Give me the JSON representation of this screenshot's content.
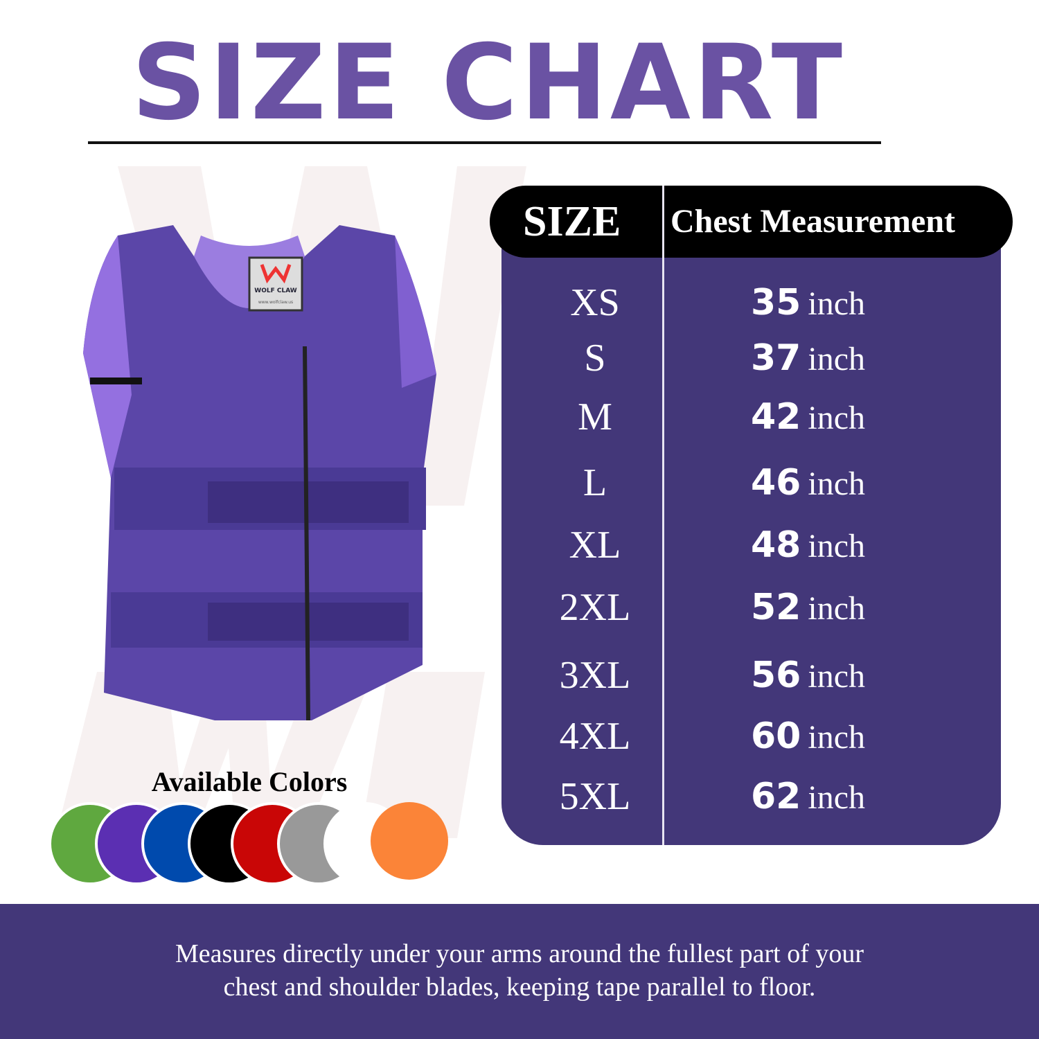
{
  "title": "SIZE CHART",
  "table": {
    "headers": [
      "SIZE",
      "Chest Measurement"
    ],
    "unit": "inch",
    "rows": [
      {
        "size": "XS",
        "chest": "35"
      },
      {
        "size": "S",
        "chest": "37"
      },
      {
        "size": "M",
        "chest": "42"
      },
      {
        "size": "L",
        "chest": "46"
      },
      {
        "size": "XL",
        "chest": "48"
      },
      {
        "size": "2XL",
        "chest": "52"
      },
      {
        "size": "3XL",
        "chest": "56"
      },
      {
        "size": "4XL",
        "chest": "60"
      },
      {
        "size": "5XL",
        "chest": "62"
      }
    ]
  },
  "product": {
    "label_brand": "WOLF CLAW",
    "label_url": "www.wolfclaw.us",
    "color": "#5b46a8"
  },
  "available_colors": {
    "label": "Available Colors",
    "swatches": [
      "#5fa83f",
      "#5b2fb2",
      "#004aad",
      "#000000",
      "#c90606",
      "#999999",
      "#ffffff",
      "#fb8438"
    ]
  },
  "footer": {
    "line1": "Measures directly under your arms around the fullest part of your",
    "line2": "chest and shoulder blades, keeping tape parallel to floor."
  },
  "colors": {
    "title": "#6a52a3",
    "table_bg": "#433779",
    "header_bg": "#000000"
  }
}
